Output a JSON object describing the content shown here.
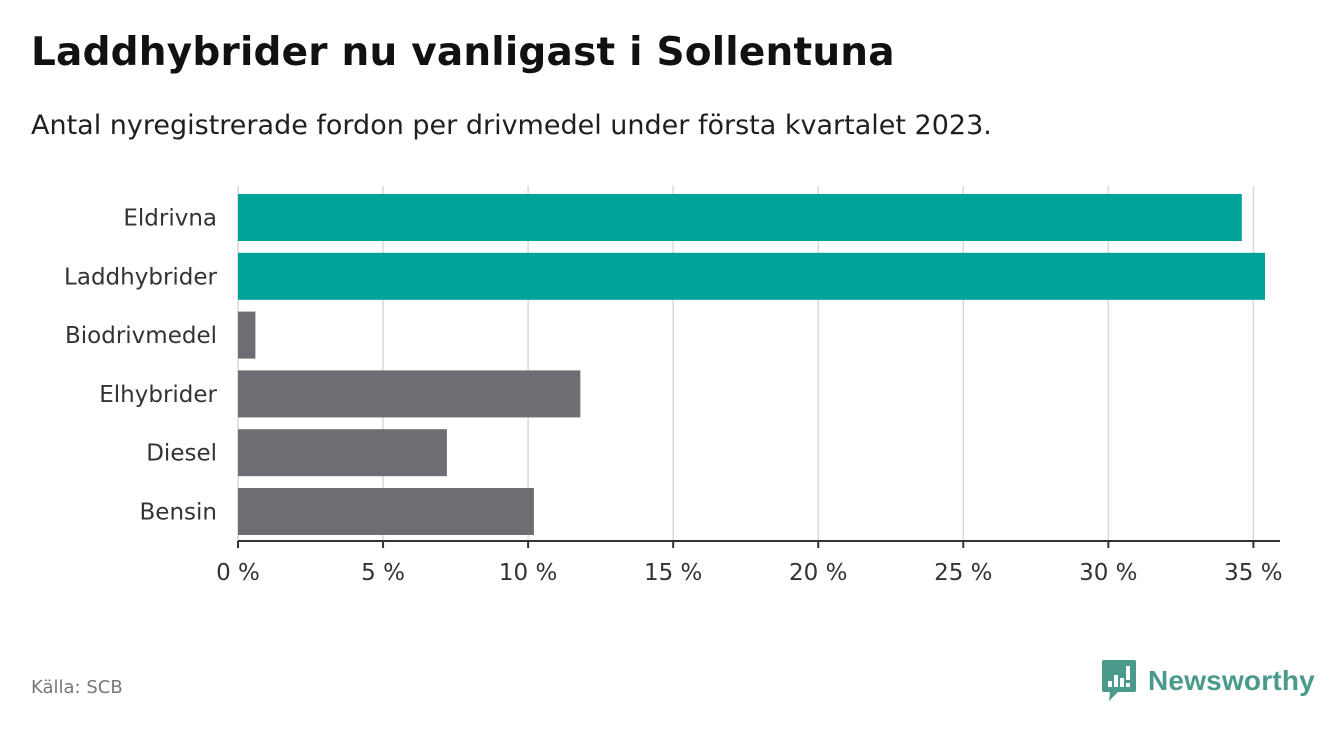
{
  "title": "Laddhybrider nu vanligast i Sollentuna",
  "subtitle": "Antal nyregistrerade fordon per drivmedel under första kvartalet 2023.",
  "source": "Källa: SCB",
  "brand": {
    "name": "Newsworthy",
    "color": "#4a9a8c",
    "icon": "bar-chart-icon"
  },
  "colors": {
    "highlight": "#00a398",
    "default": "#6e6d73",
    "grid": "#d9d9d9",
    "axis": "#333333"
  },
  "chart_data": {
    "type": "bar",
    "orientation": "horizontal",
    "categories": [
      "Eldrivna",
      "Laddhybrider",
      "Biodrivmedel",
      "Elhybrider",
      "Diesel",
      "Bensin"
    ],
    "values": [
      34.6,
      35.4,
      0.6,
      11.8,
      7.2,
      10.2
    ],
    "highlighted": [
      true,
      true,
      false,
      false,
      false,
      false
    ],
    "unit": "%",
    "xlim": [
      0,
      35.4
    ],
    "xticks": [
      0,
      5,
      10,
      15,
      20,
      25,
      30,
      35
    ],
    "xtick_labels": [
      "0 %",
      "5 %",
      "10 %",
      "15 %",
      "20 %",
      "25 %",
      "30 %",
      "35 %"
    ],
    "grid": true
  }
}
